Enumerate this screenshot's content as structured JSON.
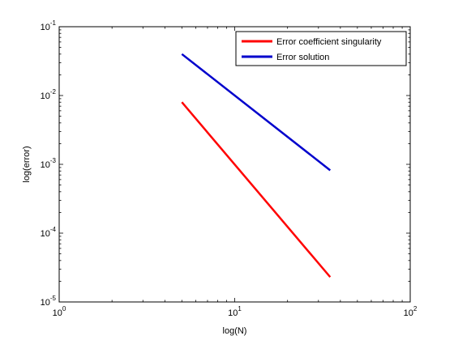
{
  "chart_data": {
    "type": "line",
    "xscale": "log",
    "yscale": "log",
    "xlim": [
      1,
      100
    ],
    "ylim": [
      1e-05,
      0.1
    ],
    "xlabel": "log(N)",
    "ylabel": "log(error)",
    "x_ticks": [
      {
        "value": 1,
        "base": "10",
        "exp": "0"
      },
      {
        "value": 10,
        "base": "10",
        "exp": "1"
      },
      {
        "value": 100,
        "base": "10",
        "exp": "2"
      }
    ],
    "y_ticks": [
      {
        "value": 1e-05,
        "base": "10",
        "exp": "-5"
      },
      {
        "value": 0.0001,
        "base": "10",
        "exp": "-4"
      },
      {
        "value": 0.001,
        "base": "10",
        "exp": "-3"
      },
      {
        "value": 0.01,
        "base": "10",
        "exp": "-2"
      },
      {
        "value": 0.1,
        "base": "10",
        "exp": "-1"
      }
    ],
    "grid": false,
    "legend_position": "top-right",
    "series": [
      {
        "name": "Error coefficient singularity",
        "color": "#ff0000",
        "x": [
          5,
          35
        ],
        "y": [
          0.008,
          2.3e-05
        ]
      },
      {
        "name": "Error solution",
        "color": "#0000cc",
        "x": [
          5,
          35
        ],
        "y": [
          0.04,
          0.00082
        ]
      }
    ]
  }
}
